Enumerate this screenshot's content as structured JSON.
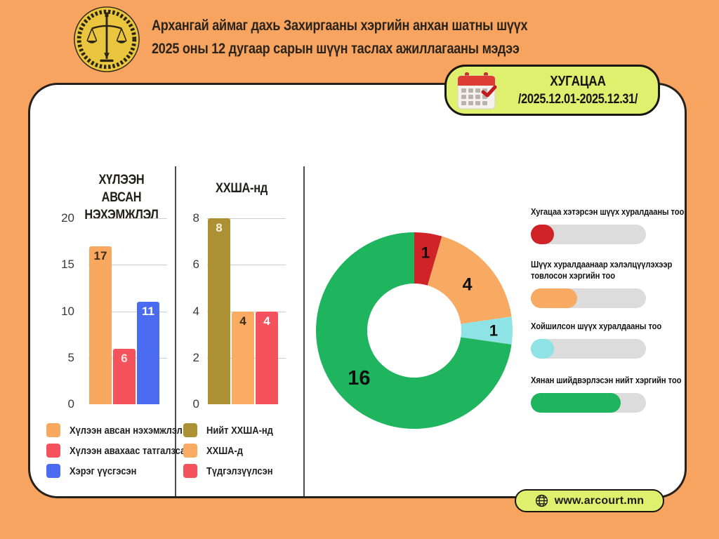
{
  "header": {
    "title_line1": "Архангай аймаг дахь Захиргааны хэргийн анхан шатны шүүх",
    "title_line2": "2025 оны 12 дугаар сарын шүүн таслах ажиллагааны мэдээ"
  },
  "period": {
    "label": "ХУГАЦАА",
    "range": "/2025.12.01-2025.12.31/"
  },
  "footer": {
    "website": "www.arcourt.mn"
  },
  "colors": {
    "background": "#f6a45f",
    "card": "#ffffff",
    "badge": "#def06d",
    "divider": "#4c4c4c",
    "pill_track": "#dcdcdc",
    "bar_orange": "#f8a95f",
    "bar_red": "#f4525c",
    "bar_blue": "#4b6bf0",
    "bar_olive": "#ab9133",
    "donut_green": "#1fb55e",
    "donut_red": "#cf2327",
    "donut_orange": "#f8a962",
    "donut_cyan": "#8fe3e4"
  },
  "chart_data": [
    {
      "type": "bar",
      "title": "ХҮЛЭЭН АВСАН\nНЭХЭМЖЛЭЛ",
      "ylim": [
        0,
        20
      ],
      "ticks": [
        0,
        5,
        10,
        15,
        20
      ],
      "grid": true,
      "legend_position": "bottom",
      "series": [
        {
          "label": "Хүлээн авсан нэхэмжлэл",
          "value": 17,
          "color": "#f8a95f",
          "label_color": "#3b2d16"
        },
        {
          "label": "Хүлээн авахаас татгалзсан",
          "value": 6,
          "color": "#f4525c",
          "label_color": "#ffe2e2"
        },
        {
          "label": "Хэрэг үүсгэсэн",
          "value": 11,
          "color": "#4b6bf0",
          "label_color": "#ffffff"
        }
      ]
    },
    {
      "type": "bar",
      "title": "ХХША-нд",
      "ylim": [
        0,
        8
      ],
      "ticks": [
        0,
        2,
        4,
        6,
        8
      ],
      "grid": true,
      "legend_position": "bottom",
      "series": [
        {
          "label": "Нийт ХХША-нд",
          "value": 8,
          "color": "#ab9133",
          "label_color": "#fdf3da"
        },
        {
          "label": "ХХША-д",
          "value": 4,
          "color": "#f9ab63",
          "label_color": "#3b2d16"
        },
        {
          "label": "Түдгэлзүүлсэн",
          "value": 4,
          "color": "#f4525c",
          "label_color": "#ffffff"
        }
      ]
    },
    {
      "type": "pie",
      "subtype": "donut",
      "start_angle_deg": 0,
      "direction": "clockwise",
      "total": 22,
      "values": [
        {
          "label": "Хугацаа хэтэрсэн шүүх хуралдааны тоо",
          "value": 1,
          "color": "#cf2327"
        },
        {
          "label": "Шүүх хуралдаанаар хэлэлцүүлэхээр товлосон хэргийн тоо",
          "value": 4,
          "color": "#f8a962"
        },
        {
          "label": "Хойшилсон шүүх хуралдааны тоо",
          "value": 1,
          "color": "#8fe3e4"
        },
        {
          "label": "Хянан шийдвэрлэсэн нийт хэргийн тоо",
          "value": 16,
          "color": "#1fb55e"
        }
      ]
    }
  ],
  "stats": {
    "items": [
      {
        "lines": [
          "Хугацаа хэтэрсэн шүүх хуралдааны тоо"
        ],
        "color": "#cf2327",
        "fill_percent": 20
      },
      {
        "lines": [
          "Шүүх хуралдаанаар хэлэлцүүлэхээр",
          "товлосон хэргийн тоо"
        ],
        "color": "#f8a962",
        "fill_percent": 40
      },
      {
        "lines": [
          "Хойшилсон шүүх хуралдааны тоо"
        ],
        "color": "#8fe3e4",
        "fill_percent": 20
      },
      {
        "lines": [
          "Хянан шийдвэрлэсэн нийт хэргийн тоо"
        ],
        "color": "#1fb55e",
        "fill_percent": 78
      }
    ]
  }
}
